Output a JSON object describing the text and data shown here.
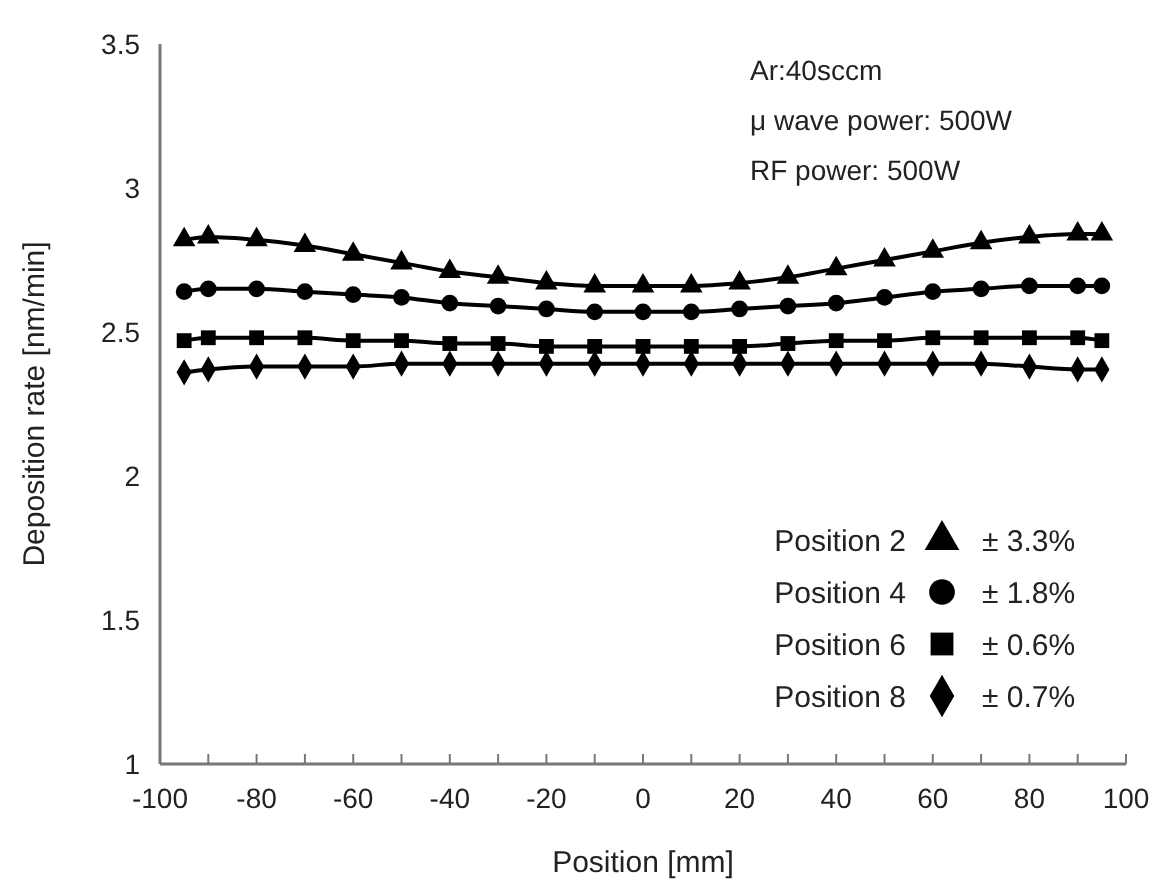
{
  "chart_data": {
    "type": "line",
    "xlabel": "Position [mm]",
    "ylabel": "Deposition rate [nm/min]",
    "x": [
      -95,
      -90,
      -80,
      -70,
      -60,
      -50,
      -40,
      -30,
      -20,
      -10,
      0,
      10,
      20,
      30,
      40,
      50,
      60,
      70,
      80,
      90,
      95
    ],
    "xlim": [
      -100,
      100
    ],
    "xticks": [
      -100,
      {
        "value": -90,
        "label": null
      },
      -80,
      {
        "value": -70,
        "label": null
      },
      -60,
      {
        "value": -50,
        "label": null
      },
      -40,
      {
        "value": -30,
        "label": null
      },
      -20,
      {
        "value": -10,
        "label": null
      },
      0,
      {
        "value": 10,
        "label": null
      },
      20,
      {
        "value": 30,
        "label": null
      },
      40,
      {
        "value": 50,
        "label": null
      },
      60,
      {
        "value": 70,
        "label": null
      },
      80,
      {
        "value": 90,
        "label": null
      },
      100
    ],
    "ylim": [
      1,
      3.5
    ],
    "yticks": [
      1,
      1.5,
      2,
      2.5,
      3,
      3.5
    ],
    "grid": false,
    "legend": "bottom right",
    "line_style": "solid",
    "series": [
      {
        "name": "Position 2",
        "color": "#000000",
        "marker": "triangle",
        "values": [
          2.82,
          2.83,
          2.82,
          2.8,
          2.77,
          2.74,
          2.71,
          2.69,
          2.67,
          2.66,
          2.66,
          2.66,
          2.67,
          2.69,
          2.72,
          2.75,
          2.78,
          2.81,
          2.83,
          2.84,
          2.84
        ]
      },
      {
        "name": "Position 4",
        "color": "#000000",
        "marker": "circle",
        "values": [
          2.64,
          2.65,
          2.65,
          2.64,
          2.63,
          2.62,
          2.6,
          2.59,
          2.58,
          2.57,
          2.57,
          2.57,
          2.58,
          2.59,
          2.6,
          2.62,
          2.64,
          2.65,
          2.66,
          2.66,
          2.66
        ]
      },
      {
        "name": "Position 6",
        "color": "#000000",
        "marker": "square",
        "values": [
          2.47,
          2.48,
          2.48,
          2.48,
          2.47,
          2.47,
          2.46,
          2.46,
          2.45,
          2.45,
          2.45,
          2.45,
          2.45,
          2.46,
          2.47,
          2.47,
          2.48,
          2.48,
          2.48,
          2.48,
          2.47
        ]
      },
      {
        "name": "Position 8",
        "color": "#000000",
        "marker": "diamond",
        "values": [
          2.36,
          2.37,
          2.38,
          2.38,
          2.38,
          2.39,
          2.39,
          2.39,
          2.39,
          2.39,
          2.39,
          2.39,
          2.39,
          2.39,
          2.39,
          2.39,
          2.39,
          2.39,
          2.38,
          2.37,
          2.37
        ]
      }
    ],
    "annotations": [
      "Ar:40sccm",
      "μ wave power: 500W",
      "RF power: 500W",
      "± 3.3%",
      "± 1.8%",
      "± 0.6%",
      "± 0.7%"
    ]
  }
}
